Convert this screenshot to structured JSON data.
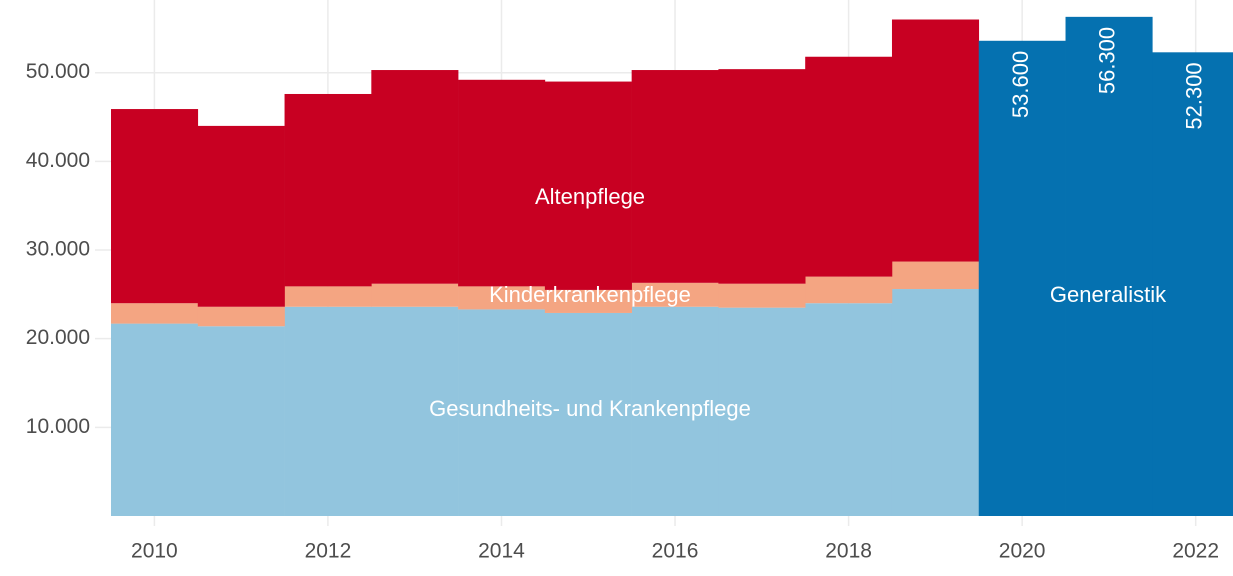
{
  "chart_data": {
    "type": "stacked_bar",
    "x": [
      2010,
      2011,
      2012,
      2013,
      2014,
      2015,
      2016,
      2017,
      2018,
      2019,
      2020,
      2021,
      2022
    ],
    "series": [
      {
        "name": "Gesundheits- und Krankenpflege",
        "color": "#92c5de",
        "values": [
          21700,
          21400,
          23600,
          23600,
          23300,
          22900,
          23600,
          23500,
          24000,
          25600,
          null,
          null,
          null
        ]
      },
      {
        "name": "Kinderkrankenpflege",
        "color": "#f4a582",
        "values": [
          2300,
          2200,
          2300,
          2600,
          2600,
          2600,
          2700,
          2700,
          3000,
          3100,
          null,
          null,
          null
        ]
      },
      {
        "name": "Altenpflege",
        "color": "#c80022",
        "values": [
          21900,
          20400,
          21700,
          24100,
          23300,
          23500,
          24000,
          24200,
          24800,
          27300,
          null,
          null,
          null
        ]
      },
      {
        "name": "Generalistik",
        "color": "#0571b0",
        "values": [
          null,
          null,
          null,
          null,
          null,
          null,
          null,
          null,
          null,
          null,
          53600,
          56300,
          52300
        ],
        "value_labels": [
          null,
          null,
          null,
          null,
          null,
          null,
          null,
          null,
          null,
          null,
          "53.600",
          "56.300",
          "52.300"
        ]
      }
    ],
    "xlim": [
      2009.5,
      2022.43
    ],
    "xticks": [
      2010,
      2012,
      2014,
      2016,
      2018,
      2020,
      2022
    ],
    "ylim": [
      0,
      58200
    ],
    "yticks": [
      {
        "value": 10000,
        "label": "10.000"
      },
      {
        "value": 20000,
        "label": "20.000"
      },
      {
        "value": 30000,
        "label": "30.000"
      },
      {
        "value": 40000,
        "label": "40.000"
      },
      {
        "value": 50000,
        "label": "50.000"
      }
    ],
    "grid": true
  }
}
